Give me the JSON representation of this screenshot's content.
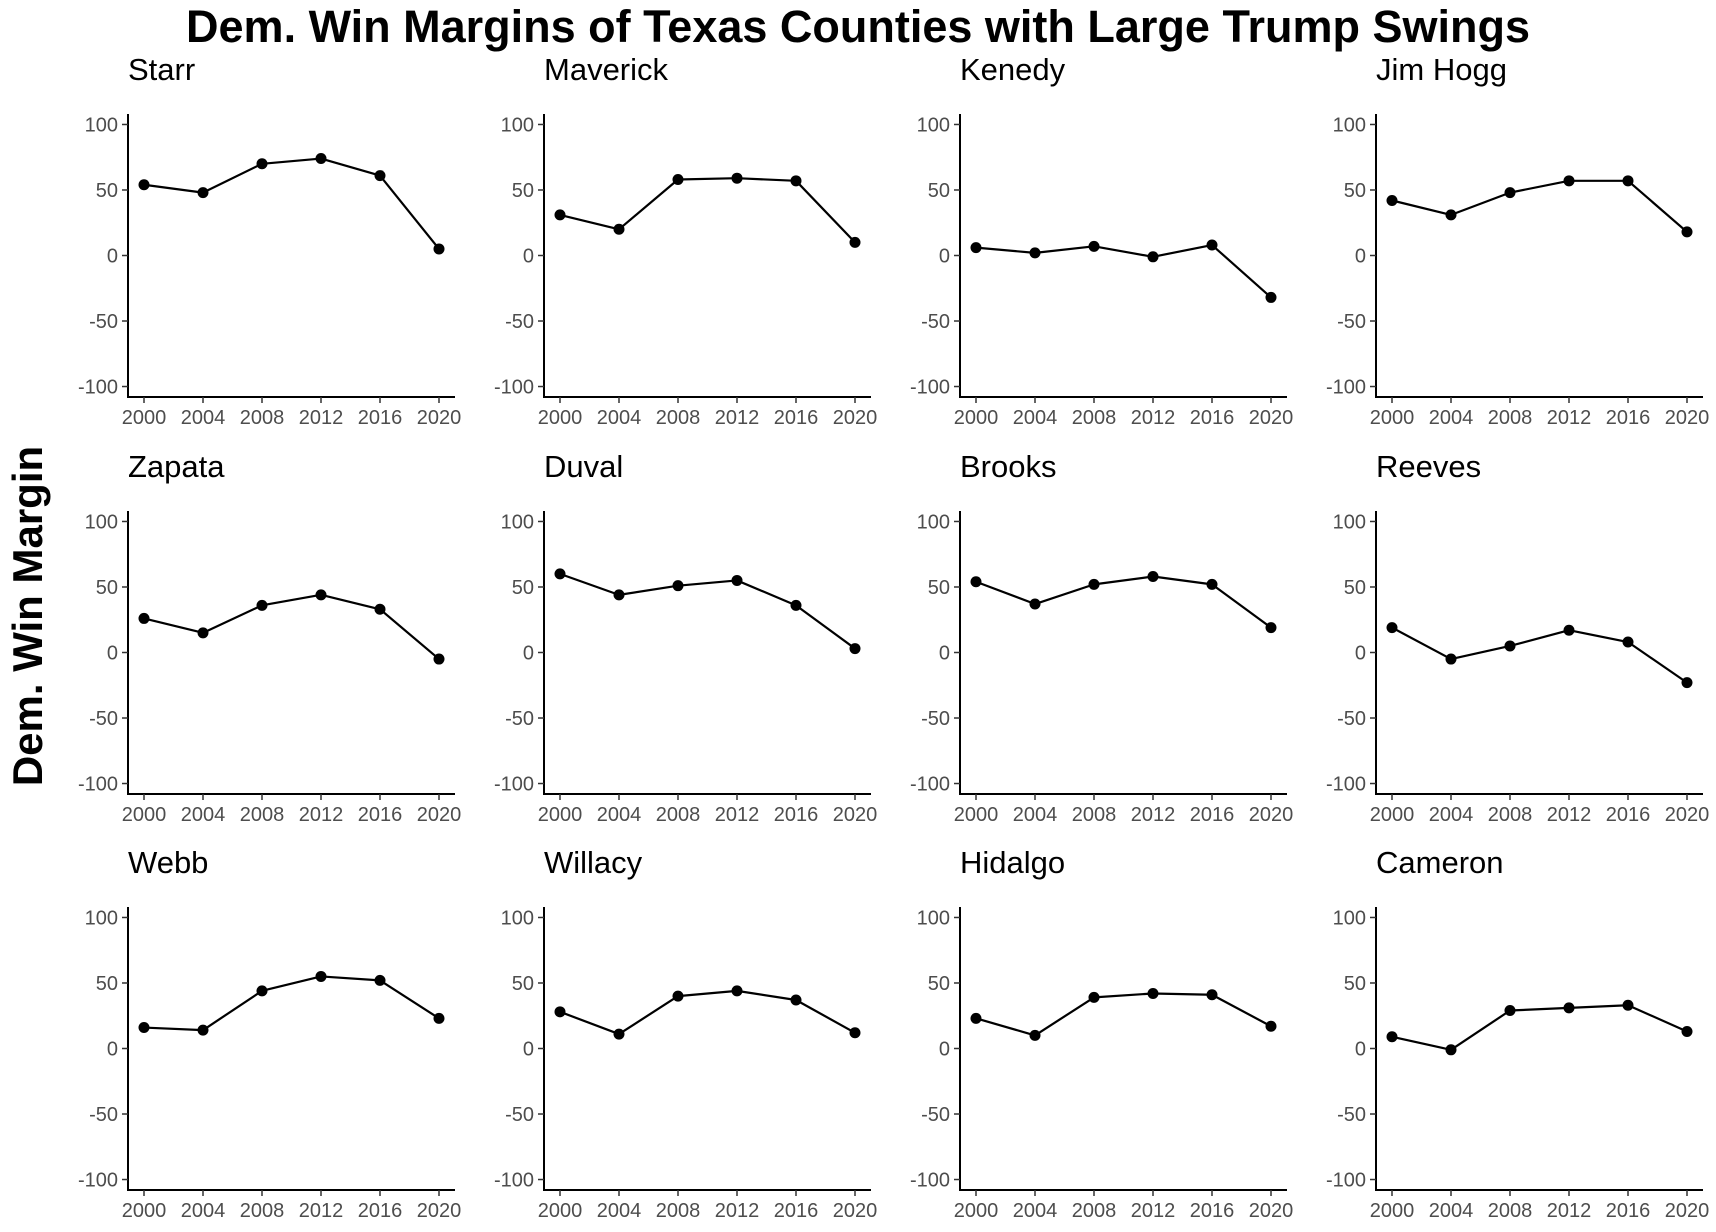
{
  "title": "Dem. Win Margins of Texas Counties with Large Trump Swings",
  "ylabel": "Dem. Win Margin",
  "chart_data": {
    "type": "line",
    "title": "Dem. Win Margins of Texas Counties with Large Trump Swings",
    "xlabel": "",
    "ylabel": "Dem. Win Margin",
    "x": [
      2000,
      2004,
      2008,
      2012,
      2016,
      2020
    ],
    "x_ticks": [
      "2000",
      "2004",
      "2008",
      "2012",
      "2016",
      "2020"
    ],
    "y_ticks": [
      "100",
      "50",
      "0",
      "-50",
      "-100"
    ],
    "y_tick_values": [
      100,
      50,
      0,
      -50,
      -100
    ],
    "ylim": [
      -108,
      108
    ],
    "grid": false,
    "line_color": "#000000",
    "panels": [
      {
        "name": "Starr",
        "values": [
          54,
          48,
          70,
          74,
          61,
          5
        ]
      },
      {
        "name": "Maverick",
        "values": [
          31,
          20,
          58,
          59,
          57,
          10
        ]
      },
      {
        "name": "Kenedy",
        "values": [
          6,
          2,
          7,
          -1,
          8,
          -32
        ]
      },
      {
        "name": "Jim Hogg",
        "values": [
          42,
          31,
          48,
          57,
          57,
          18
        ]
      },
      {
        "name": "Zapata",
        "values": [
          26,
          15,
          36,
          44,
          33,
          -5
        ]
      },
      {
        "name": "Duval",
        "values": [
          60,
          44,
          51,
          55,
          36,
          3
        ]
      },
      {
        "name": "Brooks",
        "values": [
          54,
          37,
          52,
          58,
          52,
          19
        ]
      },
      {
        "name": "Reeves",
        "values": [
          19,
          -5,
          5,
          17,
          8,
          -23
        ]
      },
      {
        "name": "Webb",
        "values": [
          16,
          14,
          44,
          55,
          52,
          23
        ]
      },
      {
        "name": "Willacy",
        "values": [
          28,
          11,
          40,
          44,
          37,
          12
        ]
      },
      {
        "name": "Hidalgo",
        "values": [
          23,
          10,
          39,
          42,
          41,
          17
        ]
      },
      {
        "name": "Cameron",
        "values": [
          9,
          -1,
          29,
          31,
          33,
          13
        ]
      }
    ]
  }
}
